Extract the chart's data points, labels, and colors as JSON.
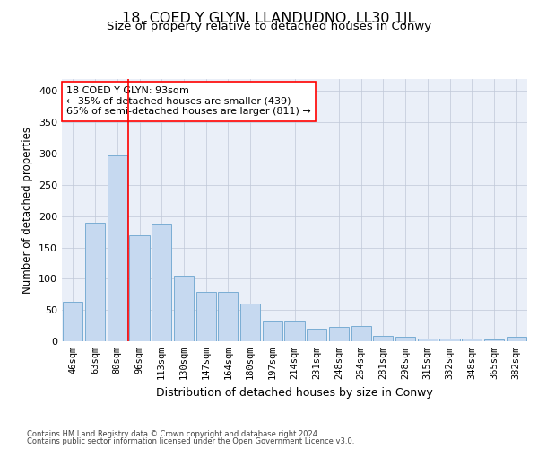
{
  "title": "18, COED Y GLYN, LLANDUDNO, LL30 1JL",
  "subtitle": "Size of property relative to detached houses in Conwy",
  "xlabel": "Distribution of detached houses by size in Conwy",
  "ylabel": "Number of detached properties",
  "categories": [
    "46sqm",
    "63sqm",
    "80sqm",
    "96sqm",
    "113sqm",
    "130sqm",
    "147sqm",
    "164sqm",
    "180sqm",
    "197sqm",
    "214sqm",
    "231sqm",
    "248sqm",
    "264sqm",
    "281sqm",
    "298sqm",
    "315sqm",
    "332sqm",
    "348sqm",
    "365sqm",
    "382sqm"
  ],
  "values": [
    63,
    190,
    297,
    169,
    188,
    105,
    79,
    79,
    60,
    31,
    31,
    20,
    23,
    24,
    9,
    7,
    5,
    4,
    4,
    3,
    7
  ],
  "bar_color": "#c6d9f0",
  "bar_edge_color": "#7aadd4",
  "property_line_x": 3.0,
  "annotation_text": "18 COED Y GLYN: 93sqm\n← 35% of detached houses are smaller (439)\n65% of semi-detached houses are larger (811) →",
  "annotation_box_color": "white",
  "annotation_box_edge": "red",
  "vline_color": "red",
  "ylim": [
    0,
    420
  ],
  "yticks": [
    0,
    50,
    100,
    150,
    200,
    250,
    300,
    350,
    400
  ],
  "grid_color": "#c0c8d8",
  "background_color": "#eaeff8",
  "footer_line1": "Contains HM Land Registry data © Crown copyright and database right 2024.",
  "footer_line2": "Contains public sector information licensed under the Open Government Licence v3.0.",
  "title_fontsize": 11.5,
  "subtitle_fontsize": 9.5,
  "ylabel_fontsize": 8.5,
  "xlabel_fontsize": 9.0,
  "tick_fontsize": 7.5,
  "annot_fontsize": 8.0,
  "footer_fontsize": 6.0
}
